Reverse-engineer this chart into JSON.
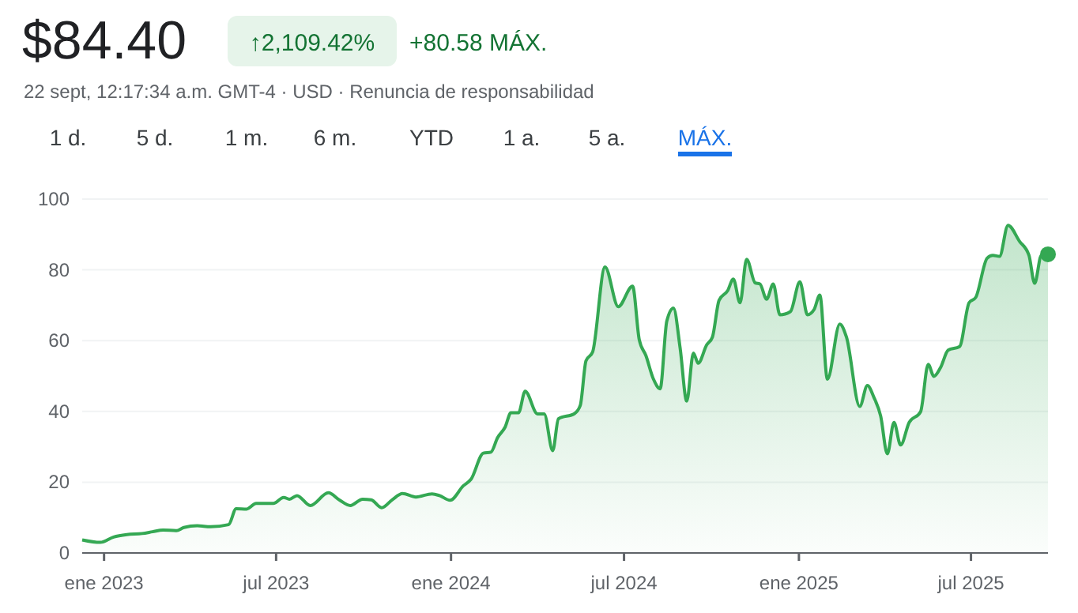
{
  "chart_data": {
    "type": "area",
    "title": "$84.40",
    "subtitle": "22 sept, 12:17:34 a.m. GMT-4 · USD · Renuncia de responsabilidad",
    "annotations": [
      "↑2,109.42%",
      "+80.58 MÁX.",
      "1 d.",
      "5 d.",
      "1 m.",
      "6 m.",
      "YTD",
      "1 a.",
      "5 a.",
      "MÁX."
    ],
    "x": [
      "2022-12-09",
      "2022-12-28",
      "2023-01-11",
      "2023-01-25",
      "2023-02-10",
      "2023-02-21",
      "2023-03-04",
      "2023-03-18",
      "2023-03-26",
      "2023-04-09",
      "2023-04-23",
      "2023-05-12",
      "2023-05-20",
      "2023-05-31",
      "2023-06-10",
      "2023-06-28",
      "2023-07-09",
      "2023-07-15",
      "2023-07-23",
      "2023-08-06",
      "2023-08-25",
      "2023-09-06",
      "2023-09-17",
      "2023-09-30",
      "2023-10-09",
      "2023-10-20",
      "2023-10-31",
      "2023-11-11",
      "2023-11-25",
      "2023-12-12",
      "2023-12-20",
      "2023-12-31",
      "2024-01-14",
      "2024-01-22",
      "2024-02-04",
      "2024-02-12",
      "2024-02-19",
      "2024-02-27",
      "2024-03-04",
      "2024-03-12",
      "2024-03-19",
      "2024-04-01",
      "2024-04-08",
      "2024-04-17",
      "2024-04-23",
      "2024-05-10",
      "2024-05-16",
      "2024-05-22",
      "2024-05-29",
      "2024-06-11",
      "2024-06-25",
      "2024-07-10",
      "2024-07-17",
      "2024-07-24",
      "2024-08-01",
      "2024-08-08",
      "2024-08-15",
      "2024-08-22",
      "2024-08-29",
      "2024-09-05",
      "2024-09-12",
      "2024-09-17",
      "2024-09-26",
      "2024-10-02",
      "2024-10-09",
      "2024-10-18",
      "2024-10-24",
      "2024-10-31",
      "2024-11-07",
      "2024-11-16",
      "2024-11-21",
      "2024-11-28",
      "2024-12-05",
      "2024-12-12",
      "2024-12-23",
      "2025-01-02",
      "2025-01-10",
      "2025-01-17",
      "2025-01-23",
      "2025-01-31",
      "2025-02-13",
      "2025-02-20",
      "2025-03-06",
      "2025-03-14",
      "2025-03-21",
      "2025-03-28",
      "2025-04-04",
      "2025-04-11",
      "2025-04-18",
      "2025-04-27",
      "2025-05-09",
      "2025-05-17",
      "2025-05-23",
      "2025-05-30",
      "2025-06-07",
      "2025-06-19",
      "2025-06-29",
      "2025-07-06",
      "2025-07-18",
      "2025-07-24",
      "2025-07-31",
      "2025-08-09",
      "2025-08-21",
      "2025-08-31",
      "2025-09-06",
      "2025-09-13",
      "2025-09-20"
    ],
    "series": [
      {
        "color": "#34a853",
        "values": [
          3.7,
          3.0,
          4.5,
          5.2,
          5.5,
          6.0,
          6.5,
          6.3,
          7.2,
          7.7,
          7.4,
          8.0,
          12.5,
          12.4,
          14.0,
          14.0,
          15.7,
          15.2,
          16.2,
          13.4,
          17.0,
          14.9,
          13.4,
          15.2,
          15.0,
          12.8,
          15.0,
          16.8,
          15.8,
          16.7,
          16.2,
          14.9,
          19.0,
          20.8,
          28.2,
          28.5,
          32.6,
          35.6,
          39.6,
          39.6,
          45.7,
          39.3,
          39.3,
          28.9,
          37.9,
          39.4,
          41.7,
          54.3,
          56.8,
          80.8,
          69.6,
          75.4,
          60.3,
          55.8,
          49.1,
          46.4,
          65.5,
          69.2,
          58.0,
          42.9,
          56.5,
          53.6,
          58.8,
          61.0,
          71.4,
          74.1,
          77.4,
          70.7,
          83.0,
          76.3,
          76.0,
          71.7,
          76.0,
          67.3,
          68.2,
          76.6,
          67.3,
          68.8,
          72.9,
          49.1,
          64.7,
          61.0,
          41.4,
          47.3,
          43.9,
          38.7,
          28.0,
          36.9,
          30.5,
          36.9,
          39.9,
          53.3,
          49.9,
          52.4,
          57.3,
          58.3,
          70.7,
          72.2,
          83.3,
          84.1,
          83.8,
          92.6,
          88.1,
          84.1,
          76.2,
          84.1,
          84.4
        ]
      }
    ],
    "xlim": [
      "2022-12-09",
      "2025-09-20"
    ],
    "xticks": [
      {
        "value": "2023-01-01",
        "label": "ene 2023"
      },
      {
        "value": "2023-07-01",
        "label": "jul 2023"
      },
      {
        "value": "2024-01-01",
        "label": "ene 2024"
      },
      {
        "value": "2024-07-01",
        "label": "jul 2024"
      },
      {
        "value": "2025-01-01",
        "label": "ene 2025"
      },
      {
        "value": "2025-07-01",
        "label": "jul 2025"
      }
    ],
    "ylim": [
      0,
      100
    ],
    "yticks": [
      0,
      20,
      40,
      60,
      80,
      100
    ],
    "grid": "y",
    "marker": "none",
    "line_style": "solid"
  }
}
